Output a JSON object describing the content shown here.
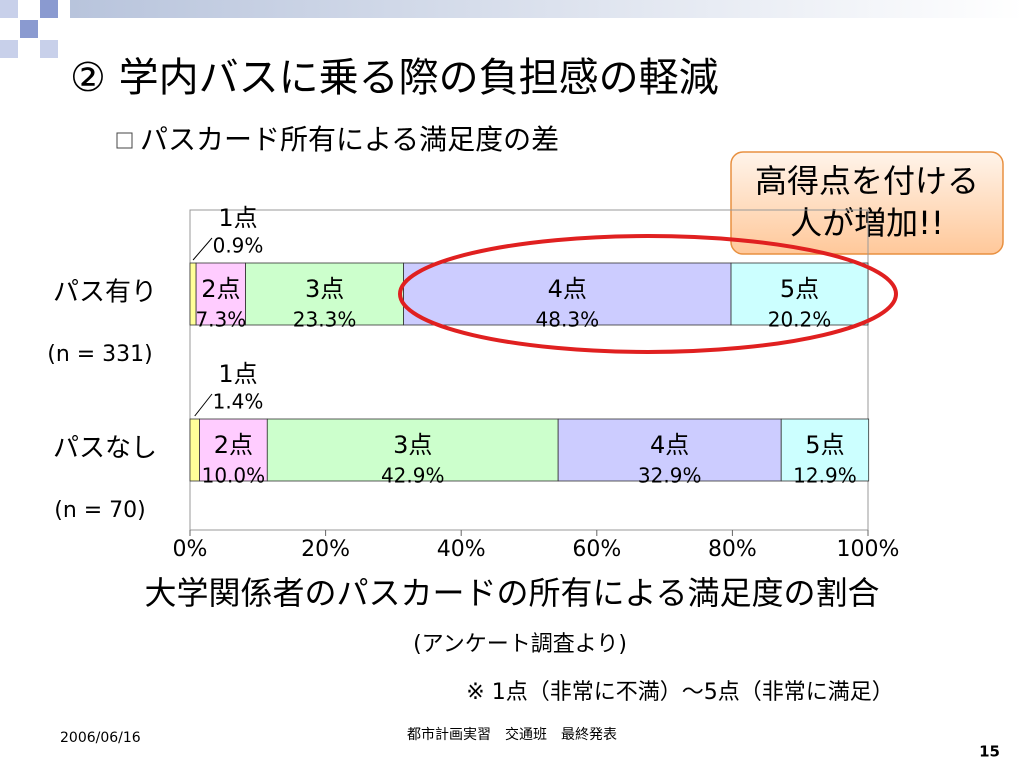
{
  "slide_title": "② 学内バスに乗る際の負担感の軽減",
  "subtitle": "パスカード所有による満足度の差",
  "callout": [
    "高得点を付ける",
    "人が増加!!"
  ],
  "source": "(アンケート調査より)",
  "note": "※ 1点（非常に不満）～5点（非常に満足）",
  "footer": {
    "date": "2006/06/16",
    "center": "都市計画実習　交通班　最終発表",
    "page": "15"
  },
  "chart_data": {
    "type": "stacked_bar_h",
    "title": "大学関係者のパスカードの所有による満足度の割合",
    "categories": [
      "パス有り",
      "パスなし"
    ],
    "category_notes": [
      "(n = 331)",
      "(n = 70)"
    ],
    "series": [
      {
        "name": "1点",
        "color": "#ffff99",
        "values": [
          0.9,
          1.4
        ],
        "value_labels": [
          "0.9%",
          "1.4%"
        ]
      },
      {
        "name": "2点",
        "color": "#ffccff",
        "values": [
          7.3,
          10.0
        ],
        "value_labels": [
          "7.3%",
          "10.0%"
        ]
      },
      {
        "name": "3点",
        "color": "#ccffcc",
        "values": [
          23.3,
          42.9
        ],
        "value_labels": [
          "23.3%",
          "42.9%"
        ]
      },
      {
        "name": "4点",
        "color": "#ccccff",
        "values": [
          48.3,
          32.9
        ],
        "value_labels": [
          "48.3%",
          "32.9%"
        ]
      },
      {
        "name": "5点",
        "color": "#ccffff",
        "values": [
          20.2,
          12.9
        ],
        "value_labels": [
          "20.2%",
          "12.9%"
        ]
      }
    ],
    "xlim": [
      0,
      100
    ],
    "xticks": [
      {
        "value": 0,
        "label": "0%"
      },
      {
        "value": 20,
        "label": "20%"
      },
      {
        "value": 40,
        "label": "40%"
      },
      {
        "value": 60,
        "label": "60%"
      },
      {
        "value": 80,
        "label": "80%"
      },
      {
        "value": 100,
        "label": "100%"
      }
    ]
  }
}
